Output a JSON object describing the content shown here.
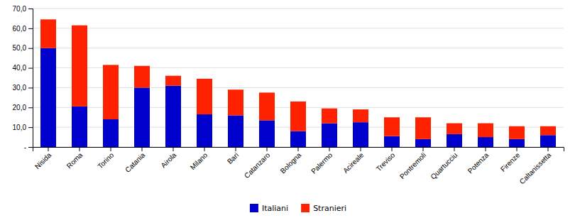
{
  "chart_data": {
    "type": "bar",
    "stacked": true,
    "categories": [
      "Nisida",
      "Roma",
      "Torino",
      "Catania",
      "Airola",
      "Milano",
      "Bari",
      "Catanzaro",
      "Bologna",
      "Palermo",
      "Acireale",
      "Treviso",
      "Pontremoli",
      "Quartucciu",
      "Potenza",
      "Firenze",
      "Caltanissetta"
    ],
    "series": [
      {
        "name": "Italiani",
        "color": "#0000CC",
        "values": [
          50.0,
          20.5,
          14.0,
          30.0,
          31.0,
          16.5,
          16.0,
          13.5,
          8.0,
          12.0,
          12.5,
          5.5,
          4.0,
          6.5,
          5.0,
          4.0,
          6.0
        ]
      },
      {
        "name": "Stranieri",
        "color": "#FF2200",
        "values": [
          14.5,
          41.0,
          27.5,
          11.0,
          5.0,
          18.0,
          13.0,
          14.0,
          15.0,
          7.5,
          6.5,
          9.5,
          11.0,
          5.5,
          7.0,
          6.5,
          4.5
        ]
      }
    ],
    "ylim": [
      0,
      70
    ],
    "yticks": [
      {
        "value": 0,
        "label": "-"
      },
      {
        "value": 10,
        "label": "10,0"
      },
      {
        "value": 20,
        "label": "20,0"
      },
      {
        "value": 30,
        "label": "30,0"
      },
      {
        "value": 40,
        "label": "40,0"
      },
      {
        "value": 50,
        "label": "50,0"
      },
      {
        "value": 60,
        "label": "60,0"
      },
      {
        "value": 70,
        "label": "70,0"
      }
    ],
    "grid": true,
    "legend": "bottom"
  }
}
